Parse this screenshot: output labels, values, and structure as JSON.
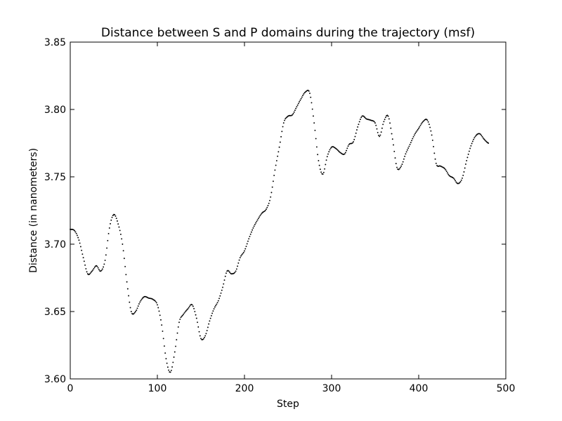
{
  "chart_data": {
    "type": "scatter",
    "title": "Distance between S and P domains during the trajectory (msf)",
    "xlabel": "Step",
    "ylabel": "Distance (in nanometers)",
    "xlim": [
      0,
      500
    ],
    "ylim": [
      3.6,
      3.85
    ],
    "xticks": [
      0,
      100,
      200,
      300,
      400,
      500
    ],
    "yticks": [
      3.6,
      3.65,
      3.7,
      3.75,
      3.8,
      3.85
    ],
    "xtick_labels": [
      "0",
      "100",
      "200",
      "300",
      "400",
      "500"
    ],
    "ytick_labels": [
      "3.60",
      "3.65",
      "3.70",
      "3.75",
      "3.80",
      "3.85"
    ],
    "grid": false,
    "marker_color": "#000000",
    "series": [
      {
        "x": [
          0,
          5,
          10,
          15,
          20,
          25,
          30,
          35,
          40,
          45,
          50,
          55,
          60,
          65,
          70,
          75,
          80,
          85,
          90,
          95,
          100,
          105,
          110,
          115,
          120,
          125,
          130,
          135,
          140,
          145,
          150,
          155,
          160,
          165,
          170,
          175,
          180,
          185,
          190,
          195,
          200,
          205,
          210,
          215,
          220,
          225,
          230,
          235,
          240,
          245,
          250,
          255,
          260,
          265,
          270,
          275,
          280,
          285,
          290,
          295,
          300,
          305,
          310,
          315,
          320,
          325,
          330,
          335,
          340,
          345,
          350,
          355,
          360,
          365,
          370,
          375,
          380,
          385,
          390,
          395,
          400,
          405,
          410,
          415,
          420,
          425,
          430,
          435,
          440,
          445,
          450,
          455,
          460,
          465,
          470,
          475,
          480
        ],
        "y": [
          3.711,
          3.71,
          3.703,
          3.69,
          3.678,
          3.68,
          3.684,
          3.68,
          3.688,
          3.712,
          3.722,
          3.715,
          3.7,
          3.672,
          3.65,
          3.65,
          3.657,
          3.661,
          3.66,
          3.659,
          3.655,
          3.64,
          3.615,
          3.605,
          3.62,
          3.642,
          3.648,
          3.652,
          3.655,
          3.645,
          3.63,
          3.632,
          3.643,
          3.652,
          3.658,
          3.668,
          3.68,
          3.678,
          3.68,
          3.69,
          3.695,
          3.704,
          3.712,
          3.718,
          3.723,
          3.726,
          3.735,
          3.755,
          3.772,
          3.79,
          3.795,
          3.796,
          3.802,
          3.808,
          3.813,
          3.812,
          3.79,
          3.762,
          3.752,
          3.765,
          3.772,
          3.771,
          3.768,
          3.767,
          3.774,
          3.776,
          3.787,
          3.795,
          3.793,
          3.792,
          3.79,
          3.78,
          3.791,
          3.795,
          3.778,
          3.757,
          3.758,
          3.767,
          3.774,
          3.781,
          3.786,
          3.791,
          3.792,
          3.781,
          3.76,
          3.758,
          3.756,
          3.751,
          3.749,
          3.745,
          3.749,
          3.762,
          3.773,
          3.78,
          3.782,
          3.778,
          3.775
        ]
      }
    ]
  }
}
